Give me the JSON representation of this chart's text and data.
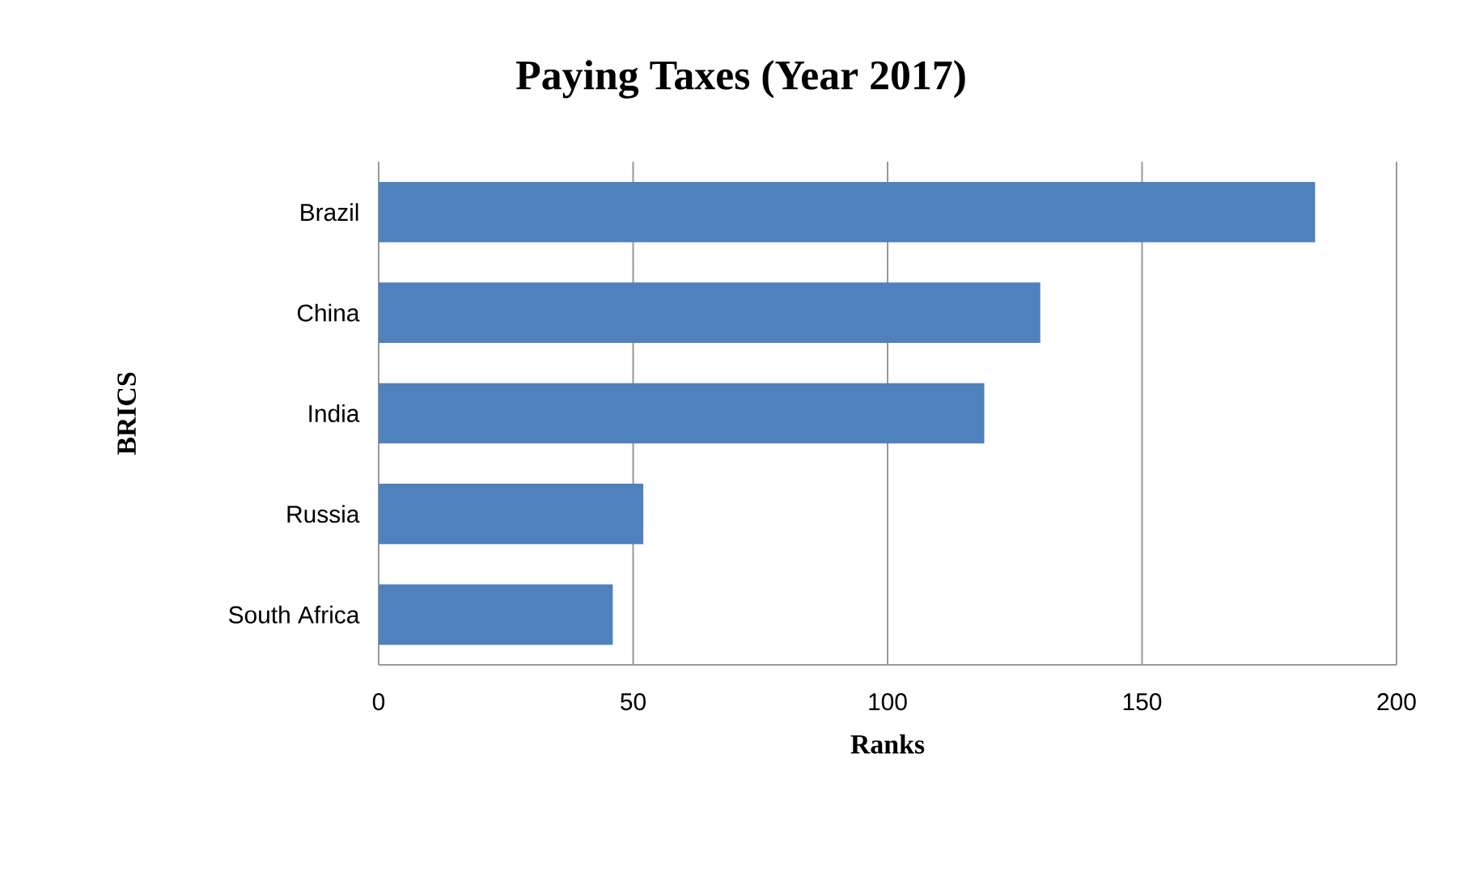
{
  "chart_data": {
    "type": "bar",
    "orientation": "horizontal",
    "title": "Paying Taxes (Year 2017)",
    "xlabel": "Ranks",
    "ylabel": "BRICS",
    "categories": [
      "Brazil",
      "China",
      "India",
      "Russia",
      "South Africa"
    ],
    "values": [
      184,
      130,
      119,
      52,
      46
    ],
    "color": "#4f81bd",
    "xlim": [
      0,
      200
    ],
    "xticks": [
      0,
      50,
      100,
      150,
      200
    ],
    "grid": "x"
  }
}
